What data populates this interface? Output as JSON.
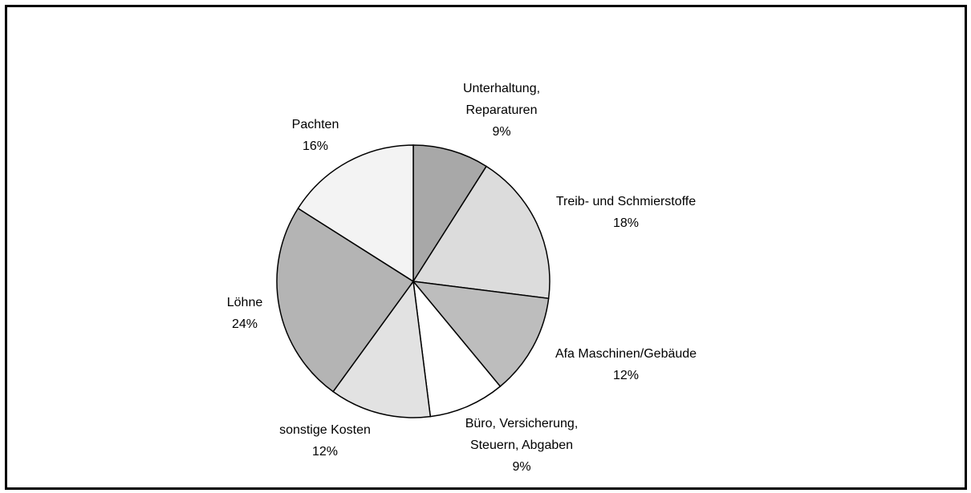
{
  "chart_data": {
    "type": "pie",
    "categories": [
      "Unterhaltung, Reparaturen",
      "Treib- und Schmierstoffe",
      "Afa Maschinen/Gebäude",
      "Büro, Versicherung, Steuern, Abgaben",
      "sonstige Kosten",
      "Löhne",
      "Pachten"
    ],
    "values": [
      9,
      18,
      12,
      9,
      12,
      24,
      16
    ],
    "value_labels": [
      "9%",
      "18%",
      "12%",
      "9%",
      "12%",
      "24%",
      "16%"
    ],
    "colors": [
      "#a8a8a8",
      "#dcdcdc",
      "#bdbdbd",
      "#ffffff",
      "#e2e2e2",
      "#b4b4b4",
      "#f3f3f3"
    ]
  }
}
